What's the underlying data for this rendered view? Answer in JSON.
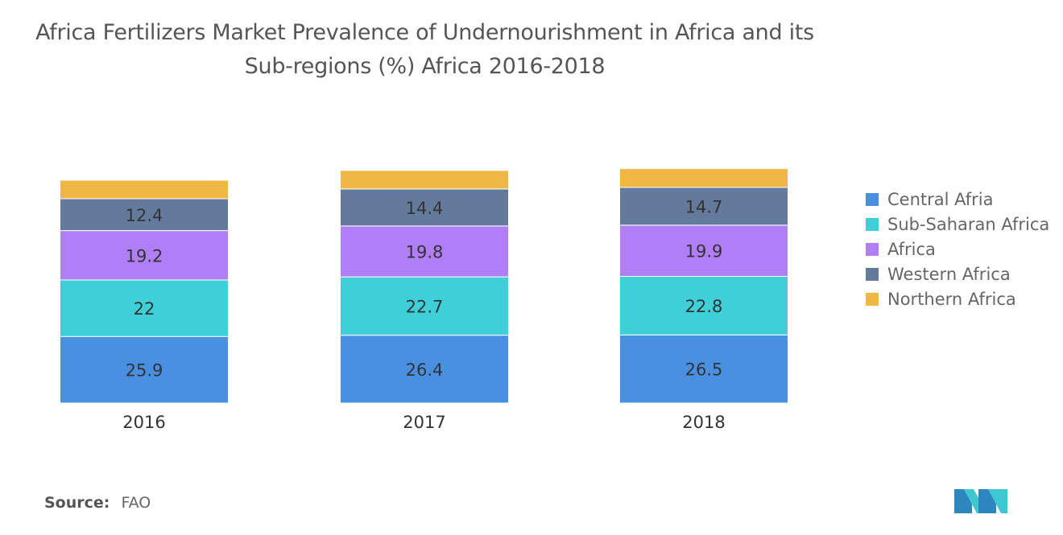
{
  "title_line1": "Africa Fertilizers Market Prevalence of Undernourishment in Africa and its",
  "title_line2": "Sub-regions (%) Africa 2016-2018",
  "source": {
    "label": "Source:",
    "value": "FAO"
  },
  "logo": {
    "icon": "mordor-intelligence-logo",
    "colors": [
      "#2e86c1",
      "#3ec6d1"
    ]
  },
  "chart_data": {
    "type": "bar",
    "stacked": true,
    "title": "Africa Fertilizers Market Prevalence of Undernourishment in Africa and its Sub-regions (%) Africa 2016-2018",
    "categories": [
      "2016",
      "2017",
      "2018"
    ],
    "series": [
      {
        "name": "Central Afria",
        "color": "#4a90e2",
        "values": [
          25.9,
          26.4,
          26.5
        ]
      },
      {
        "name": "Sub-Saharan Africa",
        "color": "#3ecfd8",
        "values": [
          22,
          22.7,
          22.8
        ]
      },
      {
        "name": "Africa",
        "color": "#b07ff7",
        "values": [
          19.2,
          19.8,
          19.9
        ]
      },
      {
        "name": "Western Africa",
        "color": "#637a9c",
        "values": [
          12.4,
          14.4,
          14.7
        ]
      },
      {
        "name": "Northern Africa",
        "color": "#f0b745",
        "values": [
          7.2,
          7.2,
          7.3
        ],
        "labels_shown": false
      }
    ],
    "legend_position": "right",
    "grid": false,
    "xlabel": "",
    "ylabel": ""
  }
}
